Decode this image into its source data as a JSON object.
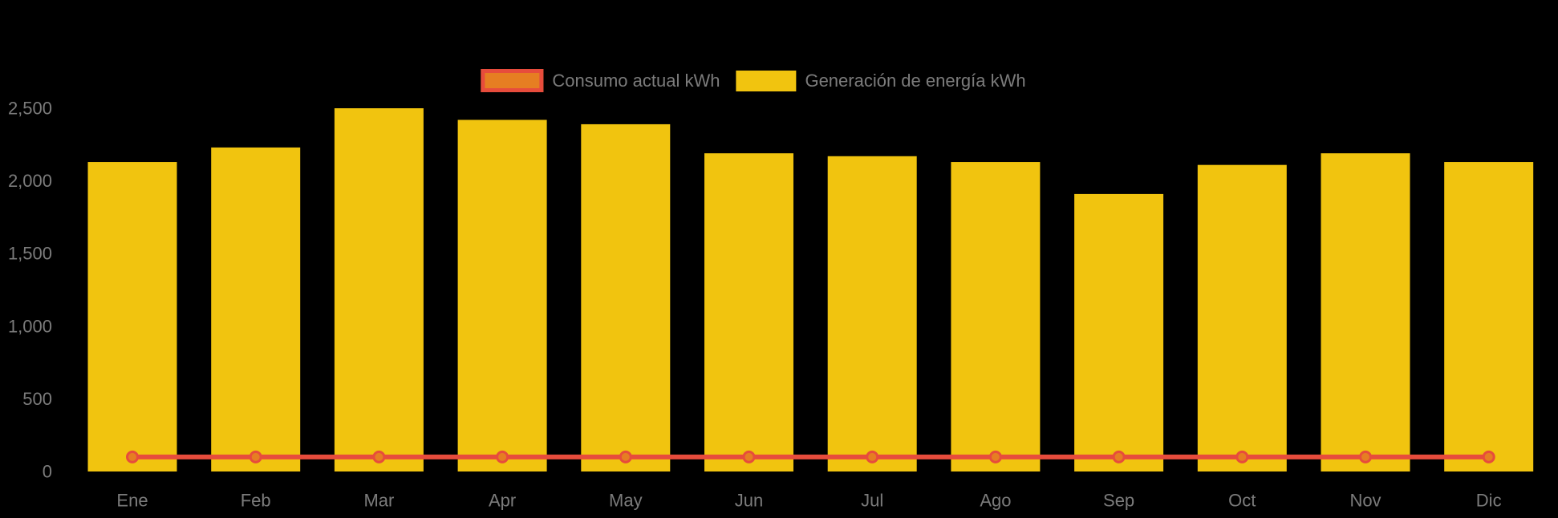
{
  "chart_data": {
    "type": "bar",
    "title": "",
    "xlabel": "",
    "ylabel": "",
    "categories": [
      "Ene",
      "Feb",
      "Mar",
      "Apr",
      "May",
      "Jun",
      "Jul",
      "Ago",
      "Sep",
      "Oct",
      "Nov",
      "Dic"
    ],
    "series": [
      {
        "name": "Consumo actual kWh",
        "type": "line",
        "values": [
          100,
          100,
          100,
          100,
          100,
          100,
          100,
          100,
          100,
          100,
          100,
          100
        ],
        "line_color": "#E74C3C",
        "marker_fill": "#E67E22",
        "marker_border": "#E74C3C"
      },
      {
        "name": "Generación de energía kWh",
        "type": "bar",
        "values": [
          2130,
          2230,
          2500,
          2420,
          2390,
          2190,
          2170,
          2130,
          1910,
          2110,
          2190,
          2130
        ],
        "bar_color": "#F1C40F"
      }
    ],
    "ylim": [
      0,
      2500
    ],
    "ytick_values": [
      0,
      500,
      1000,
      1500,
      2000,
      2500
    ],
    "ytick_labels": [
      "0",
      "500",
      "1,000",
      "1,500",
      "2,000",
      "2,500"
    ],
    "grid": false,
    "legend_position": "top",
    "background_color": "#000000",
    "axis_text_color": "#7B7B7B"
  }
}
